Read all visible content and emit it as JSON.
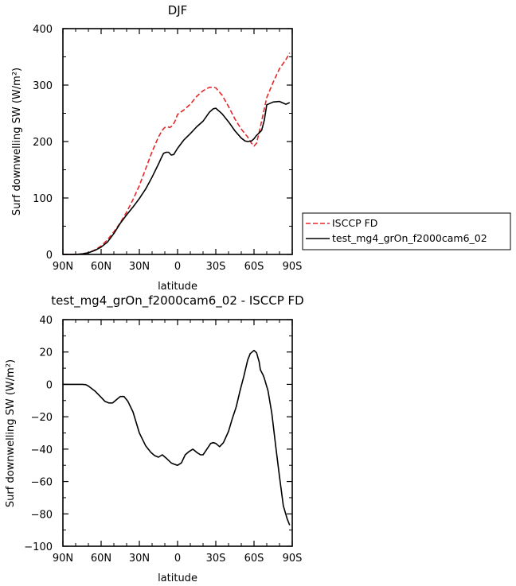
{
  "chart_data": [
    {
      "type": "line",
      "title": "DJF",
      "xlabel": "latitude",
      "ylabel": "Surf downwelling SW (W/m²)",
      "xlim": [
        90,
        -90
      ],
      "ylim": [
        0,
        400
      ],
      "x_ticks": [
        90,
        60,
        30,
        0,
        -30,
        -60,
        -90
      ],
      "x_tick_labels": [
        "90N",
        "60N",
        "30N",
        "0",
        "30S",
        "60S",
        "90S"
      ],
      "y_ticks": [
        0,
        100,
        200,
        300,
        400
      ],
      "y_tick_labels": [
        "0",
        "100",
        "200",
        "300",
        "400"
      ],
      "legend_position": "right, outside plot",
      "series": [
        {
          "name": "ISCCP FD",
          "color": "#e8262a",
          "dash": "dashed",
          "x": [
            90,
            80,
            75,
            70,
            65,
            60,
            55,
            50,
            45,
            40,
            35,
            30,
            25,
            20,
            15,
            12,
            10,
            8,
            6,
            4,
            2,
            0,
            -5,
            -10,
            -15,
            -20,
            -25,
            -28,
            -30,
            -35,
            -40,
            -45,
            -50,
            -55,
            -58,
            -60,
            -62,
            -65,
            -70,
            -75,
            -80,
            -85,
            -88
          ],
          "values": [
            0,
            0,
            1,
            3,
            8,
            15,
            26,
            40,
            56,
            75,
            97,
            122,
            152,
            182,
            208,
            220,
            225,
            226,
            225,
            228,
            236,
            248,
            256,
            266,
            280,
            290,
            296,
            296,
            295,
            282,
            262,
            240,
            222,
            208,
            197,
            192,
            197,
            226,
            278,
            305,
            329,
            345,
            357
          ]
        },
        {
          "name": "test_mg4_grOn_f2000cam6_02",
          "color": "#000000",
          "dash": "solid",
          "x": [
            90,
            80,
            75,
            70,
            65,
            60,
            55,
            50,
            45,
            40,
            35,
            30,
            25,
            20,
            15,
            13,
            11,
            9,
            7,
            5,
            3,
            0,
            -5,
            -10,
            -15,
            -20,
            -25,
            -28,
            -30,
            -35,
            -40,
            -45,
            -50,
            -53,
            -55,
            -58,
            -60,
            -62,
            -64,
            -66,
            -68,
            -70,
            -75,
            -80,
            -85,
            -88
          ],
          "values": [
            0,
            0,
            1,
            3,
            7,
            13,
            22,
            37,
            55,
            70,
            84,
            99,
            116,
            137,
            160,
            170,
            179,
            181,
            181,
            176,
            177,
            188,
            203,
            214,
            226,
            236,
            252,
            258,
            259,
            249,
            235,
            219,
            206,
            201,
            200,
            201,
            205,
            211,
            215,
            220,
            237,
            265,
            270,
            271,
            266,
            269
          ]
        }
      ]
    },
    {
      "type": "line",
      "title": "test_mg4_grOn_f2000cam6_02 - ISCCP FD",
      "xlabel": "latitude",
      "ylabel": "Surf downwelling SW (W/m²)",
      "xlim": [
        90,
        -90
      ],
      "ylim": [
        -100,
        40
      ],
      "x_ticks": [
        90,
        60,
        30,
        0,
        -30,
        -60,
        -90
      ],
      "x_tick_labels": [
        "90N",
        "60N",
        "30N",
        "0",
        "30S",
        "60S",
        "90S"
      ],
      "y_ticks": [
        -100,
        -80,
        -60,
        -40,
        -20,
        0,
        20,
        40
      ],
      "y_tick_labels": [
        "−100",
        "−80",
        "−60",
        "−40",
        "−20",
        "0",
        "20",
        "40"
      ],
      "series": [
        {
          "color": "#000000",
          "dash": "solid",
          "x": [
            90,
            80,
            75,
            72,
            70,
            65,
            60,
            57,
            54,
            51,
            48,
            45,
            42,
            39,
            35,
            30,
            25,
            21,
            18,
            15,
            12,
            9,
            5,
            2,
            0,
            -3,
            -6,
            -9,
            -12,
            -15,
            -18,
            -20,
            -23,
            -26,
            -28,
            -30,
            -33,
            -36,
            -40,
            -43,
            -46,
            -49,
            -52,
            -55,
            -57,
            -60,
            -62,
            -64,
            -65,
            -67,
            -68,
            -71,
            -74,
            -77,
            -80,
            -83,
            -86,
            -88
          ],
          "values": [
            0,
            0,
            0,
            -0.2,
            -1,
            -4,
            -8,
            -10.5,
            -11.5,
            -11.5,
            -9.5,
            -7.5,
            -7.5,
            -10.5,
            -17,
            -30,
            -38,
            -42,
            -44,
            -45,
            -43.5,
            -45.5,
            -48.5,
            -49.5,
            -50,
            -48.5,
            -43.5,
            -41.5,
            -40,
            -42,
            -43.5,
            -43.5,
            -40,
            -36.5,
            -36,
            -36.5,
            -38.5,
            -36,
            -29,
            -21,
            -14,
            -4,
            5,
            15,
            19,
            21,
            19.5,
            14,
            9,
            6,
            4,
            -4,
            -18,
            -38,
            -57,
            -75,
            -83,
            -87
          ]
        }
      ]
    }
  ]
}
